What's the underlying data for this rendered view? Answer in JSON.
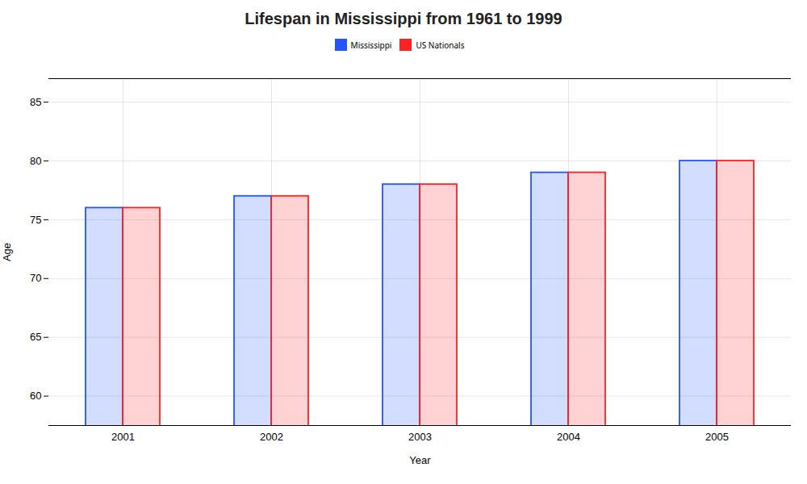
{
  "chart_data": {
    "type": "bar",
    "title": "Lifespan in Mississippi from 1961 to 1999",
    "xlabel": "Year",
    "ylabel": "Age",
    "categories": [
      "2001",
      "2002",
      "2003",
      "2004",
      "2005"
    ],
    "series": [
      {
        "name": "Mississippi",
        "color": "#2255ff",
        "values": [
          76,
          77,
          78,
          79,
          80
        ]
      },
      {
        "name": "US Nationals",
        "color": "#ff2222",
        "values": [
          76,
          77,
          78,
          79,
          80
        ]
      }
    ],
    "ylim": [
      57.5,
      87
    ],
    "yticks": [
      60,
      65,
      70,
      75,
      80,
      85
    ],
    "grid": true,
    "legend": "top"
  }
}
